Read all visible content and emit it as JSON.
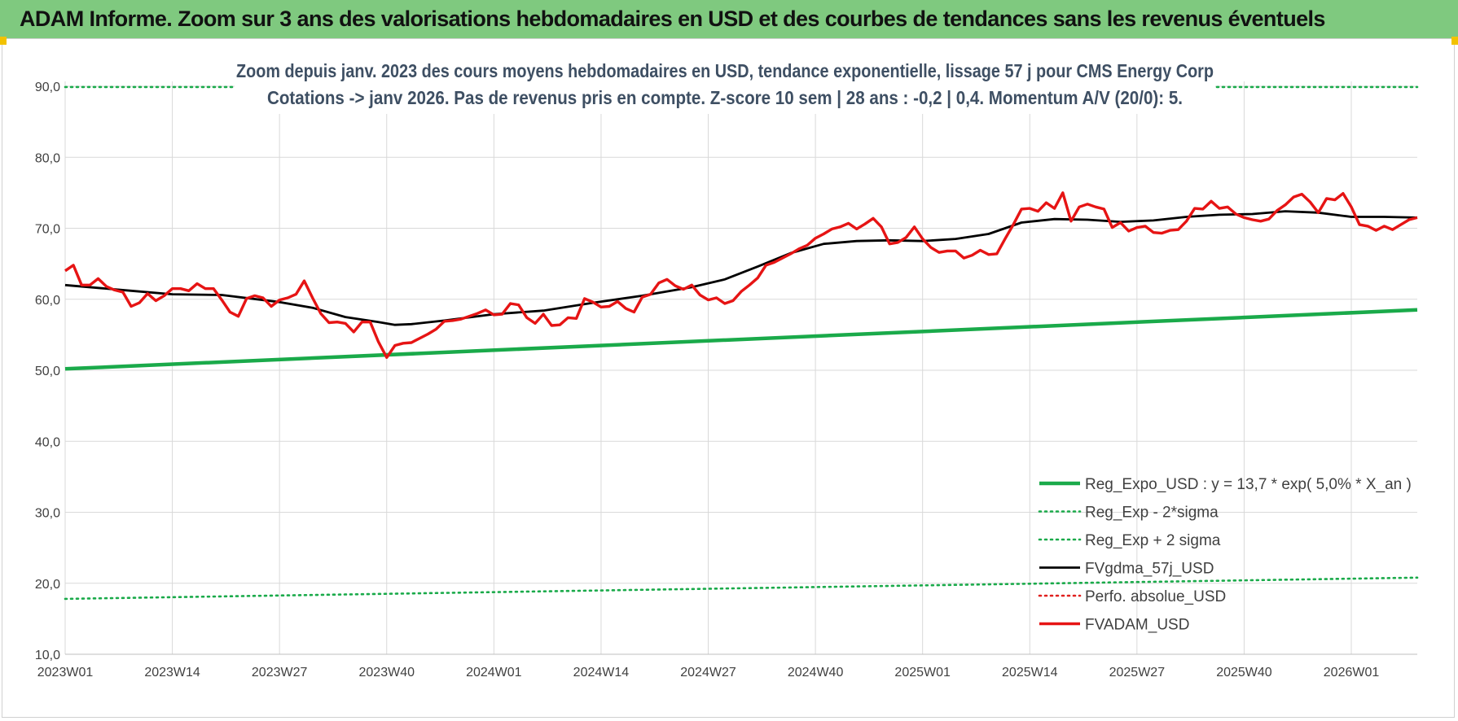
{
  "page": {
    "banner_title": "ADAM Informe. Zoom sur 3 ans des valorisations hebdomadaires en USD et des courbes de tendances sans les revenus éventuels",
    "banner_color": "#7fc97f"
  },
  "chart_data": {
    "type": "line",
    "title_line1": "Zoom depuis janv. 2023 des cours moyens hebdomadaires en USD, tendance exponentielle, lissage 57 j pour CMS Energy Corp",
    "title_line2": "Cotations -> janv 2026. Pas de revenus pris en compte. Z-score 10 sem | 28 ans : -0,2 | 0,4. Momentum A/V (20/0): 5.",
    "xlabel": "",
    "ylabel": "",
    "ylim": [
      10,
      90
    ],
    "y_ticks": [
      "10,0",
      "20,0",
      "30,0",
      "40,0",
      "50,0",
      "60,0",
      "70,0",
      "80,0",
      "90,0"
    ],
    "x_ticks": [
      "2023W01",
      "2023W14",
      "2023W27",
      "2023W40",
      "2024W01",
      "2024W14",
      "2024W27",
      "2024W40",
      "2025W01",
      "2025W14",
      "2025W27",
      "2025W40",
      "2026W01"
    ],
    "x_range_weeks": [
      0,
      164
    ],
    "grid": true,
    "legend_position": "bottom-right",
    "series": [
      {
        "name": "Reg_Expo_USD : y = 13,7 * exp( 5,0% *  X_an )",
        "color": "#1aaa4a",
        "style": "thick",
        "x": [
          0,
          164
        ],
        "values": [
          50.2,
          58.5
        ]
      },
      {
        "name": "Reg_Exp - 2*sigma",
        "color": "#1aaa4a",
        "style": "dotted",
        "x": [
          0,
          164
        ],
        "values": [
          17.8,
          20.8
        ]
      },
      {
        "name": "Reg_Exp + 2 sigma",
        "color": "#1aaa4a",
        "style": "dotted",
        "x": [
          0,
          164
        ],
        "values": [
          89.9,
          89.9
        ]
      },
      {
        "name": "FVgdma_57j_USD",
        "color": "#000000",
        "style": "solid",
        "x": [
          0,
          4,
          8,
          13,
          19,
          26,
          30,
          34,
          38,
          40,
          42,
          46,
          52,
          58,
          64,
          70,
          76,
          80,
          84,
          88,
          92,
          96,
          100,
          104,
          108,
          112,
          116,
          120,
          124,
          128,
          132,
          136,
          140,
          144,
          148,
          152,
          156,
          160,
          164
        ],
        "values": [
          62.0,
          61.6,
          61.2,
          60.7,
          60.6,
          59.6,
          58.8,
          57.5,
          56.8,
          56.4,
          56.5,
          57.0,
          57.9,
          58.4,
          59.5,
          60.5,
          61.7,
          62.8,
          64.6,
          66.5,
          67.8,
          68.2,
          68.3,
          68.2,
          68.5,
          69.2,
          70.8,
          71.3,
          71.2,
          70.9,
          71.1,
          71.6,
          71.9,
          72.0,
          72.4,
          72.2,
          71.6,
          71.6,
          71.5
        ]
      },
      {
        "name": "Perfo. absolue_USD",
        "color": "#e0201e",
        "style": "dotted",
        "x": [],
        "values": []
      },
      {
        "name": "FVADAM_USD",
        "color": "#e61414",
        "style": "thick",
        "x": [
          0,
          1,
          2,
          3,
          4,
          5,
          6,
          7,
          8,
          9,
          10,
          11,
          12,
          13,
          14,
          15,
          16,
          17,
          18,
          19,
          20,
          21,
          22,
          23,
          24,
          25,
          26,
          27,
          28,
          29,
          30,
          31,
          32,
          33,
          34,
          35,
          36,
          37,
          38,
          39,
          40,
          41,
          42,
          43,
          44,
          45,
          46,
          47,
          48,
          49,
          50,
          51,
          52,
          53,
          54,
          55,
          56,
          57,
          58,
          59,
          60,
          61,
          62,
          63,
          64,
          65,
          66,
          67,
          68,
          69,
          70,
          71,
          72,
          73,
          74,
          75,
          76,
          77,
          78,
          79,
          80,
          81,
          82,
          83,
          84,
          85,
          86,
          87,
          88,
          89,
          90,
          91,
          92,
          93,
          94,
          95,
          96,
          97,
          98,
          99,
          100,
          101,
          102,
          103,
          104,
          105,
          106,
          107,
          108,
          109,
          110,
          111,
          112,
          113,
          114,
          115,
          116,
          117,
          118,
          119,
          120,
          121,
          122,
          123,
          124,
          125,
          126,
          127,
          128,
          129,
          130,
          131,
          132,
          133,
          134,
          135,
          136,
          137,
          138,
          139,
          140,
          141,
          142,
          143,
          144,
          145,
          146,
          147,
          148,
          149,
          150,
          151,
          152,
          153,
          154,
          155,
          156,
          157,
          158,
          159,
          160,
          161,
          162,
          163,
          164
        ],
        "values": [
          64.0,
          64.8,
          62.0,
          62.0,
          62.9,
          61.8,
          61.3,
          61.0,
          59.0,
          59.5,
          60.8,
          59.8,
          60.5,
          61.5,
          61.5,
          61.2,
          62.2,
          61.5,
          61.5,
          59.9,
          58.2,
          57.6,
          60.1,
          60.5,
          60.2,
          59.0,
          59.9,
          60.2,
          60.7,
          62.6,
          60.2,
          58.0,
          56.7,
          56.8,
          56.6,
          55.4,
          56.8,
          56.8,
          54.0,
          51.8,
          53.5,
          53.8,
          53.9,
          54.5,
          55.1,
          55.8,
          56.9,
          57.0,
          57.2,
          57.6,
          58.0,
          58.5,
          57.8,
          57.9,
          59.4,
          59.2,
          57.4,
          56.6,
          57.9,
          56.3,
          56.4,
          57.4,
          57.3,
          60.1,
          59.6,
          58.9,
          59.0,
          59.7,
          58.7,
          58.2,
          60.3,
          60.7,
          62.3,
          62.8,
          61.9,
          61.4,
          62.0,
          60.6,
          59.9,
          60.2,
          59.4,
          59.8,
          61.1,
          62.0,
          63.0,
          64.8,
          65.2,
          65.8,
          66.4,
          67.1,
          67.6,
          68.6,
          69.2,
          69.9,
          70.2,
          70.7,
          69.9,
          70.6,
          71.4,
          70.2,
          67.8,
          68.0,
          68.7,
          70.2,
          68.5,
          67.3,
          66.6,
          66.8,
          66.8,
          65.8,
          66.2,
          66.9,
          66.3,
          66.4,
          68.5,
          70.5,
          72.7,
          72.8,
          72.4,
          73.6,
          72.8,
          75.0,
          71.0,
          73.0,
          73.4,
          73.0,
          72.7,
          70.1,
          70.8,
          69.6,
          70.1,
          70.3,
          69.4,
          69.3,
          69.7,
          69.8,
          71.0,
          72.8,
          72.7,
          73.8,
          72.8,
          73.0,
          72.0,
          71.5,
          71.2,
          71.0,
          71.3,
          72.5,
          73.3,
          74.4,
          74.8,
          73.7,
          72.2,
          74.2,
          74.0,
          74.9,
          73.0,
          70.5,
          70.3,
          69.7,
          70.3,
          69.8,
          70.5,
          71.2,
          71.5
        ]
      }
    ]
  }
}
